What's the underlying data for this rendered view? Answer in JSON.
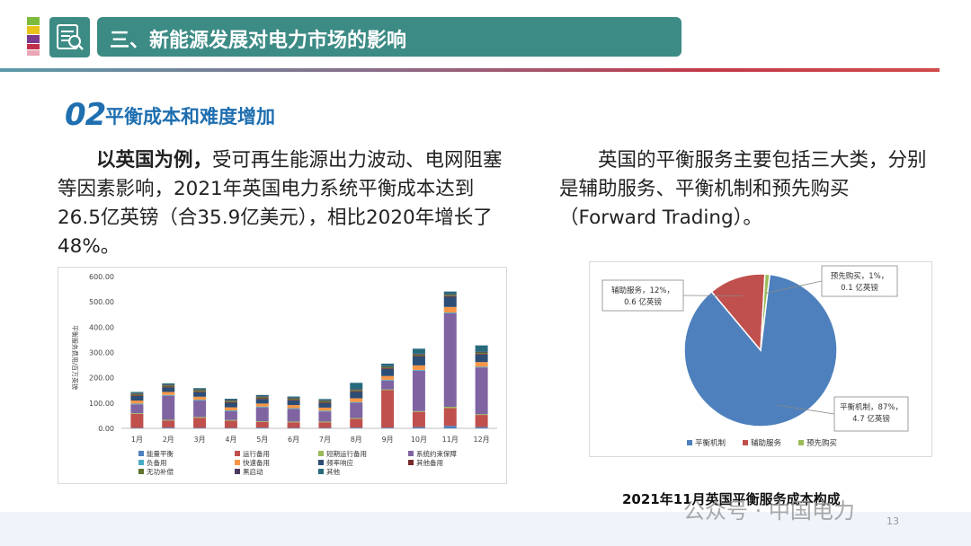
{
  "header": {
    "title": "三、新能源发展对电力市场的影响",
    "section_number": "02",
    "section_title": "平衡成本和难度增加"
  },
  "text": {
    "left_bold": "以英国为例，",
    "left_rest": "受可再生能源出力波动、电网阻塞等因素影响，2021年英国电力系统平衡成本达到26.5亿英镑（合35.9亿美元），相比2020年增长了48%。",
    "right": "英国的平衡服务主要包括三大类，分别是辅助服务、平衡机制和预先购买（Forward Trading）。"
  },
  "chart_data": [
    {
      "type": "bar",
      "stacked": true,
      "ylabel": "平衡服务费用/百万英镑",
      "ylim": [
        0,
        600
      ],
      "yticks": [
        "0.00",
        "100.00",
        "200.00",
        "300.00",
        "400.00",
        "500.00",
        "600.00"
      ],
      "categories": [
        "1月",
        "2月",
        "3月",
        "4月",
        "5月",
        "6月",
        "7月",
        "8月",
        "9月",
        "10月",
        "11月",
        "12月"
      ],
      "legend_position": "bottom",
      "series": [
        {
          "name": "能量平衡",
          "color": "#4e80bd",
          "values": [
            2,
            3,
            2,
            2,
            3,
            2,
            2,
            3,
            3,
            5,
            10,
            5
          ]
        },
        {
          "name": "运行备用",
          "color": "#c0504d",
          "values": [
            55,
            28,
            40,
            28,
            22,
            22,
            22,
            35,
            148,
            60,
            70,
            48
          ]
        },
        {
          "name": "短期运行备用",
          "color": "#9bbb59",
          "values": [
            3,
            3,
            3,
            3,
            3,
            3,
            3,
            3,
            3,
            3,
            5,
            3
          ]
        },
        {
          "name": "系统约束保障",
          "color": "#8064a2",
          "values": [
            35,
            95,
            65,
            35,
            55,
            50,
            40,
            60,
            35,
            160,
            370,
            185
          ]
        },
        {
          "name": "负备用",
          "color": "#4bacc6",
          "values": [
            3,
            3,
            3,
            3,
            3,
            3,
            3,
            3,
            3,
            3,
            3,
            3
          ]
        },
        {
          "name": "快速备用",
          "color": "#f79646",
          "values": [
            12,
            12,
            12,
            12,
            12,
            12,
            12,
            15,
            15,
            18,
            22,
            18
          ]
        },
        {
          "name": "频率响应",
          "color": "#2c4d75",
          "values": [
            18,
            18,
            18,
            18,
            18,
            18,
            18,
            25,
            28,
            35,
            40,
            30
          ]
        },
        {
          "name": "其他备用",
          "color": "#772c2a",
          "values": [
            3,
            3,
            3,
            3,
            3,
            3,
            3,
            3,
            3,
            3,
            3,
            3
          ]
        },
        {
          "name": "无功补偿",
          "color": "#5f7530",
          "values": [
            5,
            5,
            5,
            5,
            5,
            5,
            5,
            5,
            5,
            5,
            5,
            5
          ]
        },
        {
          "name": "黑启动",
          "color": "#4d3b62",
          "values": [
            3,
            3,
            3,
            3,
            3,
            3,
            3,
            3,
            3,
            3,
            3,
            3
          ]
        },
        {
          "name": "其他",
          "color": "#276a7c",
          "values": [
            5,
            5,
            5,
            5,
            5,
            5,
            5,
            25,
            10,
            20,
            10,
            25
          ]
        }
      ]
    },
    {
      "type": "pie",
      "title": "2021年11月英国平衡服务成本构成",
      "legend_position": "bottom",
      "slices": [
        {
          "name": "平衡机制",
          "percent": 87,
          "value": 4.7,
          "label_line1": "平衡机制，87%，",
          "label_line2": "4.7 亿英镑",
          "color": "#4e80bd"
        },
        {
          "name": "辅助服务",
          "percent": 12,
          "value": 0.6,
          "label_line1": "辅助服务，12%，",
          "label_line2": "0.6 亿英镑",
          "color": "#c0504d"
        },
        {
          "name": "预先购买",
          "percent": 1,
          "value": 0.1,
          "label_line1": "预先购买，1%，",
          "label_line2": "0.1 亿英镑",
          "color": "#9bbb59"
        }
      ]
    }
  ],
  "footer": {
    "watermark": "公众号 · 中国电力",
    "page_number": "13"
  },
  "colors": {
    "header_teal": "#3d8b85",
    "section_blue": "#1f6fb0"
  }
}
